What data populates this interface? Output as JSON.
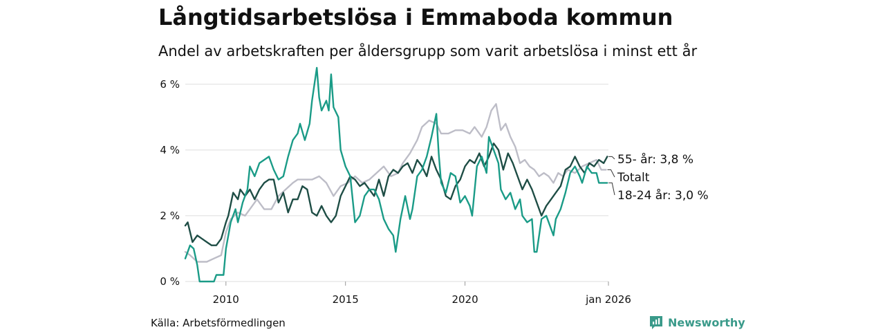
{
  "title": "Långtidsarbetslösa i Emmaboda kommun",
  "subtitle": "Andel av arbetskraften per åldersgrupp som varit arbetslösa i minst ett år",
  "source": "Källa: Arbetsförmedlingen",
  "brand": "Newsworthy",
  "colors": {
    "youth": "#1a9b87",
    "old": "#1e4d45",
    "total": "#bdbdc7",
    "grid": "#dddddd",
    "brand": "#3a9a8a"
  },
  "chart_data": {
    "type": "line",
    "xlim": [
      2008.3,
      2026.0
    ],
    "ylim": [
      0,
      6.5
    ],
    "ylabel_ticks": [
      {
        "value": 0,
        "label": "0 %"
      },
      {
        "value": 2,
        "label": "2 %"
      },
      {
        "value": 4,
        "label": "4 %"
      },
      {
        "value": 6,
        "label": "6 %"
      }
    ],
    "xlabel_ticks": [
      {
        "value": 2010,
        "label": "2010"
      },
      {
        "value": 2015,
        "label": "2015"
      },
      {
        "value": 2020,
        "label": "2020"
      },
      {
        "value": 2026,
        "label": "jan 2026"
      }
    ],
    "series": [
      {
        "name": "Totalt",
        "label": "Totalt",
        "color": "#bdbdc7",
        "points": [
          [
            2008.3,
            0.9
          ],
          [
            2008.5,
            0.8
          ],
          [
            2008.8,
            0.6
          ],
          [
            2009.2,
            0.6
          ],
          [
            2009.5,
            0.7
          ],
          [
            2009.8,
            0.8
          ],
          [
            2010.0,
            1.5
          ],
          [
            2010.2,
            1.9
          ],
          [
            2010.5,
            2.1
          ],
          [
            2010.8,
            2.0
          ],
          [
            2011.0,
            2.2
          ],
          [
            2011.3,
            2.5
          ],
          [
            2011.6,
            2.2
          ],
          [
            2011.9,
            2.2
          ],
          [
            2012.2,
            2.6
          ],
          [
            2012.5,
            2.8
          ],
          [
            2012.8,
            3.0
          ],
          [
            2013.0,
            3.1
          ],
          [
            2013.3,
            3.1
          ],
          [
            2013.6,
            3.1
          ],
          [
            2013.9,
            3.2
          ],
          [
            2014.2,
            3.0
          ],
          [
            2014.5,
            2.6
          ],
          [
            2014.8,
            2.9
          ],
          [
            2015.1,
            3.0
          ],
          [
            2015.4,
            3.2
          ],
          [
            2015.7,
            3.0
          ],
          [
            2016.0,
            3.1
          ],
          [
            2016.3,
            3.3
          ],
          [
            2016.6,
            3.5
          ],
          [
            2016.9,
            3.2
          ],
          [
            2017.2,
            3.3
          ],
          [
            2017.4,
            3.6
          ],
          [
            2017.7,
            3.9
          ],
          [
            2018.0,
            4.3
          ],
          [
            2018.2,
            4.7
          ],
          [
            2018.5,
            4.9
          ],
          [
            2018.8,
            4.8
          ],
          [
            2019.0,
            4.5
          ],
          [
            2019.3,
            4.5
          ],
          [
            2019.6,
            4.6
          ],
          [
            2019.9,
            4.6
          ],
          [
            2020.2,
            4.5
          ],
          [
            2020.4,
            4.7
          ],
          [
            2020.7,
            4.4
          ],
          [
            2020.9,
            4.7
          ],
          [
            2021.1,
            5.2
          ],
          [
            2021.3,
            5.4
          ],
          [
            2021.5,
            4.6
          ],
          [
            2021.7,
            4.8
          ],
          [
            2021.9,
            4.4
          ],
          [
            2022.1,
            4.1
          ],
          [
            2022.3,
            3.6
          ],
          [
            2022.5,
            3.7
          ],
          [
            2022.7,
            3.5
          ],
          [
            2022.9,
            3.4
          ],
          [
            2023.1,
            3.2
          ],
          [
            2023.3,
            3.3
          ],
          [
            2023.5,
            3.2
          ],
          [
            2023.7,
            3.0
          ],
          [
            2023.9,
            3.3
          ],
          [
            2024.1,
            3.2
          ],
          [
            2024.3,
            3.4
          ],
          [
            2024.6,
            3.3
          ],
          [
            2024.9,
            3.5
          ],
          [
            2025.2,
            3.6
          ],
          [
            2025.5,
            3.7
          ],
          [
            2025.7,
            3.4
          ],
          [
            2025.9,
            3.4
          ]
        ]
      },
      {
        "name": "55- år",
        "label": "55- år: 3,8 %",
        "color": "#1e4d45",
        "points": [
          [
            2008.3,
            1.7
          ],
          [
            2008.4,
            1.8
          ],
          [
            2008.6,
            1.2
          ],
          [
            2008.8,
            1.4
          ],
          [
            2009.0,
            1.3
          ],
          [
            2009.2,
            1.2
          ],
          [
            2009.4,
            1.1
          ],
          [
            2009.6,
            1.1
          ],
          [
            2009.8,
            1.3
          ],
          [
            2010.0,
            1.8
          ],
          [
            2010.1,
            2.0
          ],
          [
            2010.3,
            2.7
          ],
          [
            2010.5,
            2.5
          ],
          [
            2010.6,
            2.8
          ],
          [
            2010.8,
            2.6
          ],
          [
            2011.0,
            2.8
          ],
          [
            2011.2,
            2.5
          ],
          [
            2011.4,
            2.8
          ],
          [
            2011.6,
            3.0
          ],
          [
            2011.8,
            3.1
          ],
          [
            2012.0,
            3.1
          ],
          [
            2012.2,
            2.4
          ],
          [
            2012.4,
            2.7
          ],
          [
            2012.6,
            2.1
          ],
          [
            2012.8,
            2.5
          ],
          [
            2013.0,
            2.5
          ],
          [
            2013.2,
            2.9
          ],
          [
            2013.4,
            2.8
          ],
          [
            2013.6,
            2.1
          ],
          [
            2013.8,
            2.0
          ],
          [
            2014.0,
            2.3
          ],
          [
            2014.2,
            2.0
          ],
          [
            2014.4,
            1.8
          ],
          [
            2014.6,
            2.0
          ],
          [
            2014.8,
            2.6
          ],
          [
            2015.0,
            2.9
          ],
          [
            2015.2,
            3.2
          ],
          [
            2015.4,
            3.1
          ],
          [
            2015.6,
            2.9
          ],
          [
            2015.8,
            3.0
          ],
          [
            2016.0,
            2.8
          ],
          [
            2016.2,
            2.6
          ],
          [
            2016.4,
            3.1
          ],
          [
            2016.6,
            2.6
          ],
          [
            2016.8,
            3.2
          ],
          [
            2017.0,
            3.4
          ],
          [
            2017.2,
            3.3
          ],
          [
            2017.4,
            3.5
          ],
          [
            2017.6,
            3.6
          ],
          [
            2017.8,
            3.3
          ],
          [
            2018.0,
            3.7
          ],
          [
            2018.2,
            3.5
          ],
          [
            2018.4,
            3.2
          ],
          [
            2018.6,
            3.8
          ],
          [
            2018.8,
            3.4
          ],
          [
            2019.0,
            3.1
          ],
          [
            2019.2,
            2.6
          ],
          [
            2019.4,
            2.5
          ],
          [
            2019.6,
            2.9
          ],
          [
            2019.8,
            3.1
          ],
          [
            2020.0,
            3.5
          ],
          [
            2020.2,
            3.7
          ],
          [
            2020.4,
            3.6
          ],
          [
            2020.6,
            3.9
          ],
          [
            2020.8,
            3.5
          ],
          [
            2021.0,
            3.8
          ],
          [
            2021.2,
            4.2
          ],
          [
            2021.4,
            4.0
          ],
          [
            2021.6,
            3.4
          ],
          [
            2021.8,
            3.9
          ],
          [
            2022.0,
            3.6
          ],
          [
            2022.2,
            3.2
          ],
          [
            2022.4,
            2.8
          ],
          [
            2022.6,
            3.1
          ],
          [
            2022.8,
            2.8
          ],
          [
            2023.0,
            2.4
          ],
          [
            2023.2,
            2.0
          ],
          [
            2023.4,
            2.3
          ],
          [
            2023.6,
            2.5
          ],
          [
            2023.8,
            2.7
          ],
          [
            2024.0,
            2.9
          ],
          [
            2024.2,
            3.4
          ],
          [
            2024.4,
            3.5
          ],
          [
            2024.6,
            3.8
          ],
          [
            2024.8,
            3.5
          ],
          [
            2025.0,
            3.3
          ],
          [
            2025.2,
            3.6
          ],
          [
            2025.4,
            3.5
          ],
          [
            2025.6,
            3.7
          ],
          [
            2025.8,
            3.6
          ],
          [
            2025.95,
            3.8
          ]
        ]
      },
      {
        "name": "18-24 år",
        "label": "18-24 år: 3,0 %",
        "color": "#1a9b87",
        "points": [
          [
            2008.3,
            0.7
          ],
          [
            2008.4,
            0.9
          ],
          [
            2008.5,
            1.1
          ],
          [
            2008.65,
            1.0
          ],
          [
            2008.8,
            0.5
          ],
          [
            2008.9,
            0.0
          ],
          [
            2009.1,
            0.0
          ],
          [
            2009.3,
            0.0
          ],
          [
            2009.5,
            0.0
          ],
          [
            2009.6,
            0.2
          ],
          [
            2009.9,
            0.2
          ],
          [
            2010.0,
            1.0
          ],
          [
            2010.2,
            1.8
          ],
          [
            2010.4,
            2.2
          ],
          [
            2010.5,
            1.8
          ],
          [
            2010.7,
            2.4
          ],
          [
            2010.9,
            2.8
          ],
          [
            2011.0,
            3.5
          ],
          [
            2011.2,
            3.2
          ],
          [
            2011.4,
            3.6
          ],
          [
            2011.6,
            3.7
          ],
          [
            2011.8,
            3.8
          ],
          [
            2012.0,
            3.4
          ],
          [
            2012.2,
            3.1
          ],
          [
            2012.4,
            3.2
          ],
          [
            2012.6,
            3.8
          ],
          [
            2012.8,
            4.3
          ],
          [
            2013.0,
            4.5
          ],
          [
            2013.1,
            4.8
          ],
          [
            2013.3,
            4.3
          ],
          [
            2013.5,
            4.8
          ],
          [
            2013.6,
            5.5
          ],
          [
            2013.8,
            6.5
          ],
          [
            2013.9,
            5.6
          ],
          [
            2014.0,
            5.2
          ],
          [
            2014.2,
            5.5
          ],
          [
            2014.3,
            5.2
          ],
          [
            2014.4,
            6.3
          ],
          [
            2014.5,
            5.3
          ],
          [
            2014.7,
            5.0
          ],
          [
            2014.8,
            4.0
          ],
          [
            2015.0,
            3.5
          ],
          [
            2015.2,
            3.2
          ],
          [
            2015.4,
            1.8
          ],
          [
            2015.6,
            2.0
          ],
          [
            2015.8,
            2.6
          ],
          [
            2016.0,
            2.8
          ],
          [
            2016.2,
            2.8
          ],
          [
            2016.4,
            2.5
          ],
          [
            2016.6,
            1.9
          ],
          [
            2016.8,
            1.6
          ],
          [
            2017.0,
            1.4
          ],
          [
            2017.1,
            0.9
          ],
          [
            2017.3,
            1.9
          ],
          [
            2017.5,
            2.6
          ],
          [
            2017.7,
            1.9
          ],
          [
            2017.8,
            2.2
          ],
          [
            2018.0,
            3.2
          ],
          [
            2018.2,
            3.4
          ],
          [
            2018.4,
            3.8
          ],
          [
            2018.6,
            4.4
          ],
          [
            2018.8,
            5.1
          ],
          [
            2018.9,
            3.9
          ],
          [
            2019.0,
            3.0
          ],
          [
            2019.2,
            2.7
          ],
          [
            2019.4,
            3.3
          ],
          [
            2019.6,
            3.2
          ],
          [
            2019.8,
            2.4
          ],
          [
            2020.0,
            2.6
          ],
          [
            2020.2,
            2.3
          ],
          [
            2020.3,
            2.0
          ],
          [
            2020.5,
            3.5
          ],
          [
            2020.7,
            3.8
          ],
          [
            2020.9,
            3.3
          ],
          [
            2021.0,
            4.4
          ],
          [
            2021.2,
            4.0
          ],
          [
            2021.4,
            3.6
          ],
          [
            2021.5,
            2.8
          ],
          [
            2021.7,
            2.5
          ],
          [
            2021.9,
            2.7
          ],
          [
            2022.1,
            2.2
          ],
          [
            2022.3,
            2.5
          ],
          [
            2022.4,
            2.0
          ],
          [
            2022.6,
            1.8
          ],
          [
            2022.8,
            1.9
          ],
          [
            2022.9,
            0.9
          ],
          [
            2023.0,
            0.9
          ],
          [
            2023.2,
            1.9
          ],
          [
            2023.4,
            2.0
          ],
          [
            2023.5,
            1.8
          ],
          [
            2023.7,
            1.4
          ],
          [
            2023.8,
            1.9
          ],
          [
            2024.0,
            2.2
          ],
          [
            2024.2,
            2.7
          ],
          [
            2024.4,
            3.3
          ],
          [
            2024.6,
            3.5
          ],
          [
            2024.8,
            3.2
          ],
          [
            2024.9,
            3.0
          ],
          [
            2025.1,
            3.5
          ],
          [
            2025.3,
            3.3
          ],
          [
            2025.5,
            3.3
          ],
          [
            2025.6,
            3.0
          ],
          [
            2025.95,
            3.0
          ]
        ]
      }
    ]
  }
}
